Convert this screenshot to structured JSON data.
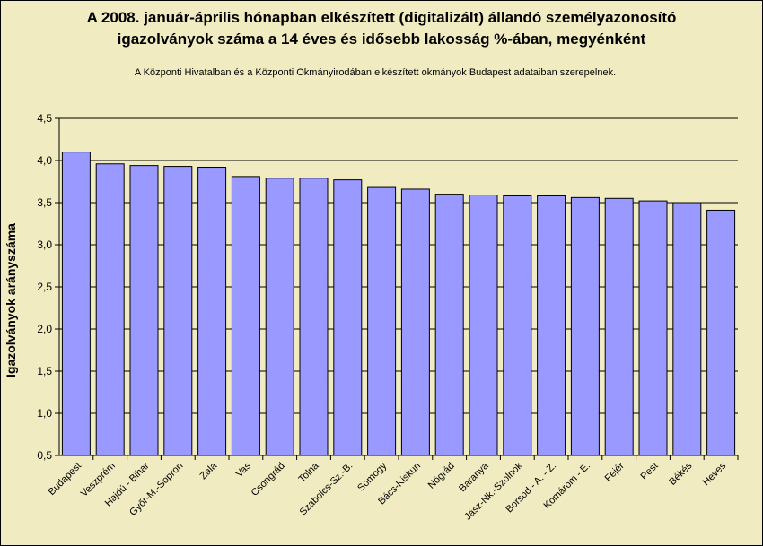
{
  "chart_data": {
    "type": "bar",
    "title_lines": [
      "A 2008. január-április hónapban elkészített (digitalizált) állandó személyazonosító",
      "igazolványok száma a 14 éves és idősebb lakosság %-ában, megyénként"
    ],
    "subtitle": "A  Központi Hivatalban és a Központi Okmányirodában elkészített  okmányok Budapest adataiban szerepelnek.",
    "ylabel": "Igazolványok arányszáma",
    "xlabel": "",
    "ylim": [
      0.5,
      4.5
    ],
    "yticks": [
      "0,5",
      "1,0",
      "1,5",
      "2,0",
      "2,5",
      "3,0",
      "3,5",
      "4,0",
      "4,5"
    ],
    "grid": true,
    "bar_color": "#9999ff",
    "background_color": "#f0ebc0",
    "categories": [
      "Budapest",
      "Veszprém",
      "Hajdú - Bihar",
      "Győr-M.-Sopron",
      "Zala",
      "Vas",
      "Csongrád",
      "Tolna",
      "Szabolcs-Sz.-B.",
      "Somogy",
      "Bács-Kiskun",
      "Nógrád",
      "Baranya",
      "Jász-Nk.-Szolnok",
      "Borsod - A. - Z.",
      "Komárom - E.",
      "Fejér",
      "Pest",
      "Békés",
      "Heves"
    ],
    "values": [
      4.1,
      3.96,
      3.94,
      3.93,
      3.92,
      3.81,
      3.79,
      3.79,
      3.77,
      3.68,
      3.66,
      3.6,
      3.59,
      3.58,
      3.58,
      3.56,
      3.55,
      3.52,
      3.5,
      3.41
    ]
  }
}
